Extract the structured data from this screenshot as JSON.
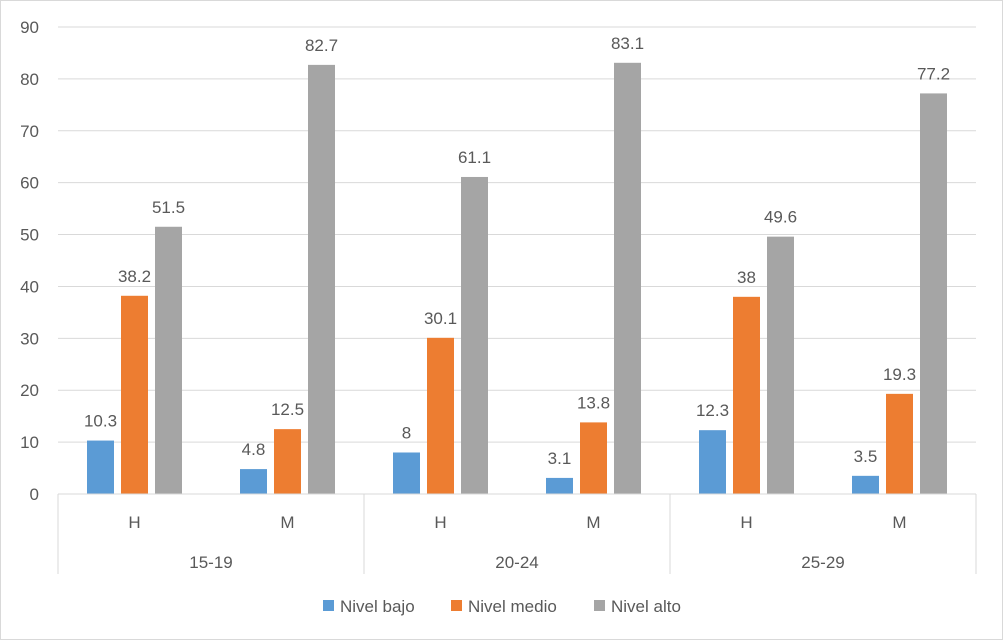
{
  "chart_data": {
    "type": "bar",
    "title": "",
    "xlabel": "",
    "ylabel": "",
    "ylim": [
      0,
      90
    ],
    "yticks": [
      0,
      10,
      20,
      30,
      40,
      50,
      60,
      70,
      80,
      90
    ],
    "groups": [
      "15-19",
      "20-24",
      "25-29"
    ],
    "subcategories": [
      "H",
      "M"
    ],
    "categories": [
      "15-19 H",
      "15-19 M",
      "20-24 H",
      "20-24 M",
      "25-29 H",
      "25-29 M"
    ],
    "series": [
      {
        "name": "Nivel bajo",
        "color": "#5b9bd5",
        "values": [
          10.3,
          4.8,
          8,
          3.1,
          12.3,
          3.5
        ]
      },
      {
        "name": "Nivel medio",
        "color": "#ed7d31",
        "values": [
          38.2,
          12.5,
          30.1,
          13.8,
          38,
          19.3
        ]
      },
      {
        "name": "Nivel alto",
        "color": "#a5a5a5",
        "values": [
          51.5,
          82.7,
          61.1,
          83.1,
          49.6,
          77.2
        ]
      }
    ],
    "grid": true,
    "legend": "bottom"
  }
}
